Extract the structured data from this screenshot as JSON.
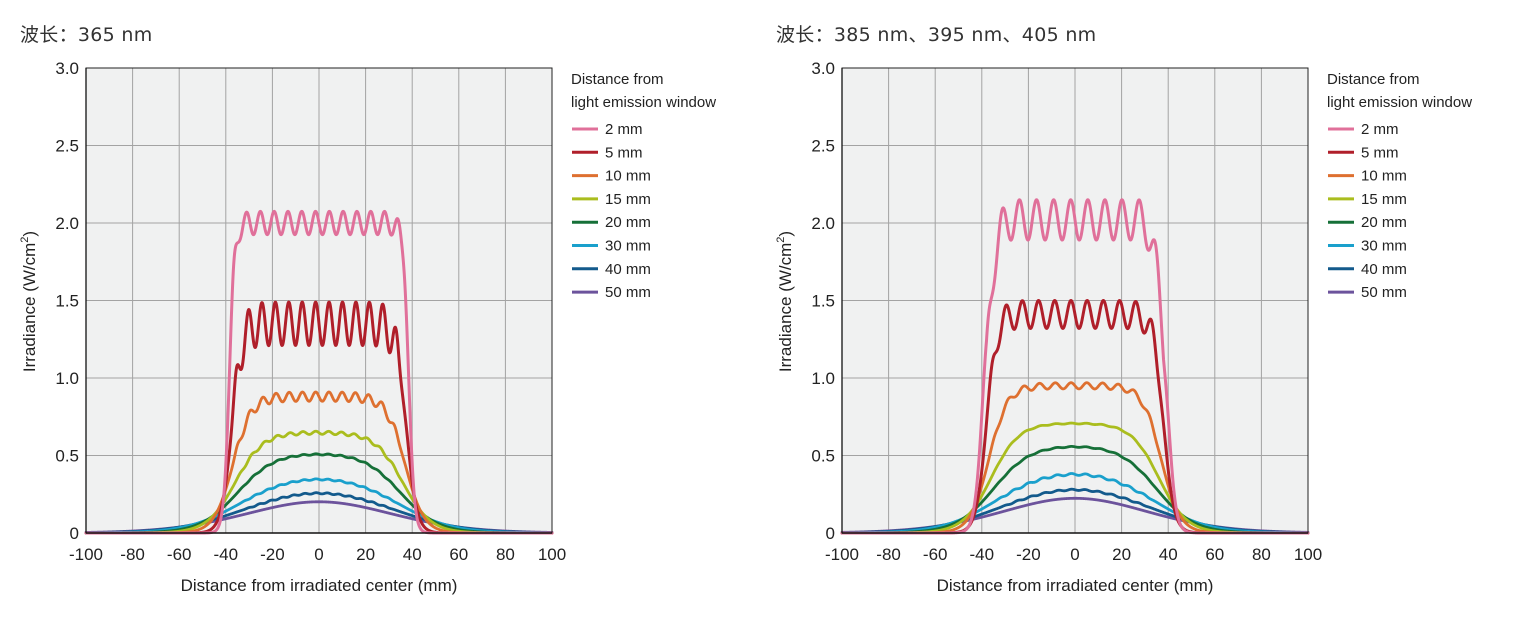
{
  "chart_data": [
    {
      "type": "line",
      "title": "波长：365 nm",
      "xlabel": "Distance from irradiated center (mm)",
      "ylabel": "Irradiance (W/cm²)",
      "ylabel_main": "Irradiance (W/cm",
      "ylabel_sup": "2",
      "ylabel_end": ")",
      "xlim": [
        -100,
        100
      ],
      "ylim": [
        0,
        3.0
      ],
      "x_ticks": [
        -100,
        -80,
        -60,
        -40,
        -20,
        0,
        20,
        40,
        60,
        80,
        100
      ],
      "x_tick_labels": [
        "-100",
        "-80",
        "-60",
        "-40",
        "-20",
        "0",
        "20",
        "40",
        "60",
        "80",
        "100"
      ],
      "y_ticks": [
        0,
        0.5,
        1.0,
        1.5,
        2.0,
        2.5,
        3.0
      ],
      "y_tick_labels": [
        "0",
        "0.5",
        "1.0",
        "1.5",
        "2.0",
        "2.5",
        "3.0"
      ],
      "grid": true,
      "legend": {
        "title_line1": "Distance from",
        "title_line2": "light emission window",
        "placement": "right"
      },
      "series": [
        {
          "name": "2 mm",
          "color": "#e0709a",
          "level": 2.0,
          "ripple": 0.075,
          "ripples": 13,
          "half_width": 38.5,
          "edge": 1.2,
          "shoulder": 0.0,
          "peak_edge": 0.1
        },
        {
          "name": "5 mm",
          "color": "#b01f2a",
          "level": 1.35,
          "ripple": 0.14,
          "ripples": 13,
          "half_width": 37.5,
          "edge": 2.2,
          "shoulder": 0.0,
          "peak_edge": 0.08
        },
        {
          "name": "10 mm",
          "color": "#de7030",
          "level": 0.88,
          "ripple": 0.03,
          "ripples": 13,
          "half_width": 37.0,
          "edge": 4.0,
          "shoulder": 0.0,
          "peak_edge": 0.02
        },
        {
          "name": "15 mm",
          "color": "#aabd1e",
          "level": 0.65,
          "ripple": 0.01,
          "ripples": 13,
          "half_width": 36.0,
          "edge": 6.0,
          "shoulder": 0.0,
          "peak_edge": 0.0
        },
        {
          "name": "20 mm",
          "color": "#167038",
          "level": 0.52,
          "ripple": 0.004,
          "ripples": 13,
          "half_width": 35.0,
          "edge": 8.0,
          "shoulder": 0.0,
          "peak_edge": 0.0
        },
        {
          "name": "30 mm",
          "color": "#1aa0cc",
          "level": 0.37,
          "ripple": 0.004,
          "ripples": 13,
          "half_width": 34.0,
          "edge": 11.0,
          "shoulder": 0.0,
          "peak_edge": 0.0
        },
        {
          "name": "40 mm",
          "color": "#135a8c",
          "level": 0.285,
          "ripple": 0.004,
          "ripples": 13,
          "half_width": 32.0,
          "edge": 14.0,
          "shoulder": 0.0,
          "peak_edge": 0.0
        },
        {
          "name": "50 mm",
          "color": "#6c539c",
          "level": 0.225,
          "ripple": 0.0,
          "ripples": 13,
          "half_width": 30.0,
          "edge": 17.0,
          "shoulder": 0.0,
          "peak_edge": 0.0
        }
      ]
    },
    {
      "type": "line",
      "title": "波长：385 nm、395 nm、405 nm",
      "xlabel": "Distance from irradiated center (mm)",
      "ylabel": "Irradiance (W/cm²)",
      "ylabel_main": "Irradiance (W/cm",
      "ylabel_sup": "2",
      "ylabel_end": ")",
      "xlim": [
        -100,
        100
      ],
      "ylim": [
        0,
        3.0
      ],
      "x_ticks": [
        -100,
        -80,
        -60,
        -40,
        -20,
        0,
        20,
        40,
        60,
        80,
        100
      ],
      "x_tick_labels": [
        "-100",
        "-80",
        "-60",
        "-40",
        "-20",
        "0",
        "20",
        "40",
        "60",
        "80",
        "100"
      ],
      "y_ticks": [
        0,
        0.5,
        1.0,
        1.5,
        2.0,
        2.5,
        3.0
      ],
      "y_tick_labels": [
        "0",
        "0.5",
        "1.0",
        "1.5",
        "2.0",
        "2.5",
        "3.0"
      ],
      "grid": true,
      "legend": {
        "title_line1": "Distance from",
        "title_line2": "light emission window",
        "placement": "right"
      },
      "series": [
        {
          "name": "2 mm",
          "color": "#e0709a",
          "level": 2.02,
          "ripple": 0.13,
          "ripples": 11,
          "half_width": 40.0,
          "edge": 1.6,
          "shoulder": 0.25,
          "peak_edge": 0.0
        },
        {
          "name": "5 mm",
          "color": "#b01f2a",
          "level": 1.41,
          "ripple": 0.09,
          "ripples": 11,
          "half_width": 38.0,
          "edge": 2.2,
          "shoulder": 0.0,
          "peak_edge": 0.0
        },
        {
          "name": "10 mm",
          "color": "#de7030",
          "level": 0.95,
          "ripple": 0.02,
          "ripples": 11,
          "half_width": 37.0,
          "edge": 4.0,
          "shoulder": 0.0,
          "peak_edge": 0.0
        },
        {
          "name": "15 mm",
          "color": "#aabd1e",
          "level": 0.71,
          "ripple": 0.003,
          "ripples": 11,
          "half_width": 36.0,
          "edge": 6.0,
          "shoulder": 0.0,
          "peak_edge": 0.0
        },
        {
          "name": "20 mm",
          "color": "#167038",
          "level": 0.57,
          "ripple": 0.003,
          "ripples": 11,
          "half_width": 35.0,
          "edge": 8.0,
          "shoulder": 0.0,
          "peak_edge": 0.0
        },
        {
          "name": "30 mm",
          "color": "#1aa0cc",
          "level": 0.405,
          "ripple": 0.006,
          "ripples": 11,
          "half_width": 34.0,
          "edge": 11.0,
          "shoulder": 0.0,
          "peak_edge": 0.0
        },
        {
          "name": "40 mm",
          "color": "#135a8c",
          "level": 0.31,
          "ripple": 0.004,
          "ripples": 11,
          "half_width": 32.0,
          "edge": 14.0,
          "shoulder": 0.0,
          "peak_edge": 0.0
        },
        {
          "name": "50 mm",
          "color": "#6c539c",
          "level": 0.25,
          "ripple": 0.0,
          "ripples": 11,
          "half_width": 30.0,
          "edge": 17.0,
          "shoulder": 0.0,
          "peak_edge": 0.0
        }
      ]
    }
  ]
}
